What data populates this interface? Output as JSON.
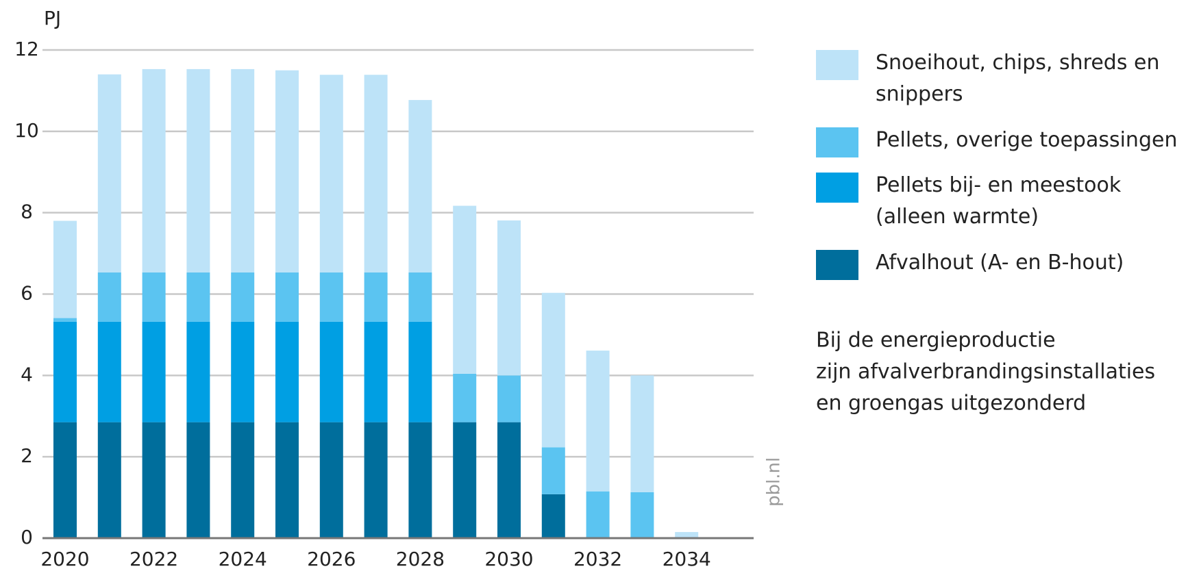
{
  "chart_data": {
    "type": "stacked_bar",
    "y_axis_label": "PJ",
    "source": "pbl.nl",
    "categories": [
      "2020",
      null,
      "2022",
      null,
      "2024",
      null,
      "2026",
      null,
      "2028",
      null,
      "2030",
      null,
      "2032",
      null,
      "2034"
    ],
    "series": [
      {
        "name": "Afvalhout (A- en B-hout)",
        "color": "#006e9c",
        "values": [
          2.85,
          2.85,
          2.85,
          2.85,
          2.85,
          2.85,
          2.85,
          2.85,
          2.85,
          2.85,
          2.85,
          1.08,
          0,
          0,
          0
        ]
      },
      {
        "name": "Pellets bij- en meestook (alleen warmte)",
        "color": "#009fe3",
        "values": [
          2.47,
          2.47,
          2.47,
          2.47,
          2.47,
          2.47,
          2.47,
          2.47,
          2.47,
          0,
          0,
          0,
          0,
          0,
          0
        ]
      },
      {
        "name": "Pellets, overige toepassingen",
        "color": "#5bc4f1",
        "values": [
          0.09,
          1.21,
          1.21,
          1.21,
          1.21,
          1.21,
          1.21,
          1.21,
          1.21,
          1.19,
          1.15,
          1.15,
          1.15,
          1.13,
          0
        ]
      },
      {
        "name": "Snoeihout, chips, shreds en snippers",
        "color": "#bde3f8",
        "values": [
          2.39,
          4.87,
          5.0,
          5.0,
          5.0,
          4.97,
          4.86,
          4.86,
          4.24,
          4.13,
          3.81,
          3.8,
          3.46,
          2.87,
          0.15
        ]
      }
    ],
    "ylim": [
      0,
      12
    ],
    "yticks": [
      0,
      2,
      4,
      6,
      8,
      10,
      12
    ],
    "grid": true,
    "legend": "right",
    "annotations": [
      "Bij de energieproductie",
      "zijn afvalverbrandingsinstallaties",
      "en groengas uitgezonderd"
    ]
  }
}
